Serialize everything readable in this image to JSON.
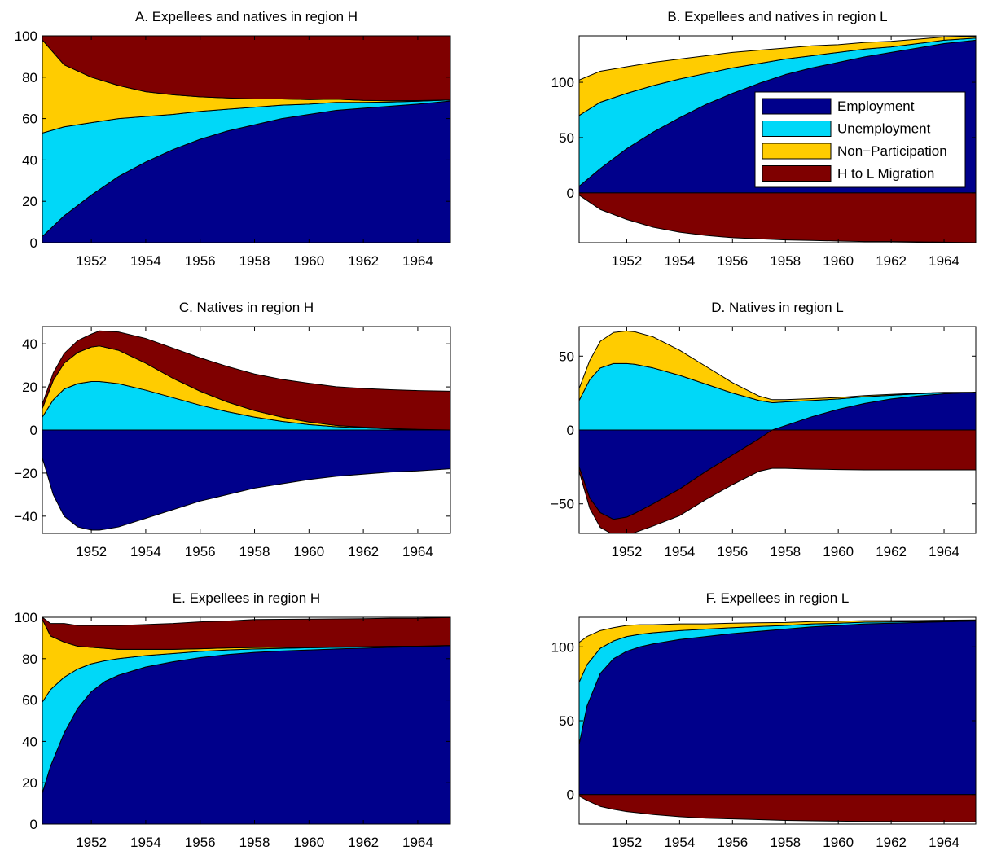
{
  "colors": {
    "employment": "#00008b",
    "unemployment": "#00d8f8",
    "non_participation": "#ffcc00",
    "migration": "#7f0000"
  },
  "legend": {
    "employment": "Employment",
    "unemployment": "Unemployment",
    "non_participation": "Non−Participation",
    "migration": "H to L Migration"
  },
  "chart_data": [
    {
      "id": "A",
      "type": "area",
      "title": "A. Expellees and natives in region H",
      "xlim": [
        1950.2,
        1965.2
      ],
      "ylim": [
        0,
        100
      ],
      "xticks": [
        1952,
        1954,
        1956,
        1958,
        1960,
        1962,
        1964
      ],
      "yticks": [
        0,
        20,
        40,
        60,
        80,
        100
      ],
      "ytick_labels": [
        "0",
        "20",
        "40",
        "60",
        "80",
        "100"
      ],
      "x": [
        1950.2,
        1951,
        1952,
        1953,
        1954,
        1955,
        1956,
        1957,
        1958,
        1959,
        1960,
        1961,
        1962,
        1963,
        1964,
        1965.2
      ],
      "series": [
        {
          "name": "Employment",
          "key": "employment",
          "values": [
            3,
            13,
            23,
            32,
            39,
            45,
            50,
            54,
            57,
            60,
            62,
            64,
            65,
            66,
            67,
            68.5
          ]
        },
        {
          "name": "Unemployment",
          "key": "unemployment",
          "values": [
            50,
            43,
            35,
            28,
            22,
            17,
            13.5,
            10.5,
            8.5,
            6.5,
            5,
            3.8,
            2.8,
            2,
            1.4,
            0.5
          ]
        },
        {
          "name": "Non−Participation",
          "key": "non_participation",
          "values": [
            45,
            30,
            22,
            16,
            12,
            9.5,
            7,
            5.5,
            4,
            3,
            2.2,
            1.6,
            1,
            0.6,
            0.3,
            0
          ]
        },
        {
          "name": "H to L Migration",
          "key": "migration",
          "values": [
            2,
            14,
            20,
            24,
            27,
            28.5,
            29.5,
            30,
            30.5,
            30.5,
            30.8,
            30.6,
            31.2,
            31.4,
            31.3,
            31
          ]
        }
      ]
    },
    {
      "id": "B",
      "type": "area",
      "title": "B. Expellees and natives in region L",
      "xlim": [
        1950.2,
        1965.2
      ],
      "ylim": [
        -45,
        142
      ],
      "xticks": [
        1952,
        1954,
        1956,
        1958,
        1960,
        1962,
        1964
      ],
      "yticks": [
        0,
        50,
        100
      ],
      "ytick_labels": [
        "0",
        "50",
        "100"
      ],
      "x": [
        1950.2,
        1951,
        1952,
        1953,
        1954,
        1955,
        1956,
        1957,
        1958,
        1959,
        1960,
        1961,
        1962,
        1963,
        1964,
        1965.2
      ],
      "series": [
        {
          "name": "Employment",
          "key": "employment",
          "values": [
            6,
            22,
            40,
            55,
            68,
            80,
            90,
            99,
            107,
            113,
            118,
            123,
            127,
            131,
            135,
            138
          ]
        },
        {
          "name": "Unemployment",
          "key": "unemployment",
          "values": [
            64,
            60,
            50,
            42,
            35,
            28,
            23,
            18,
            14,
            11,
            9,
            7,
            5,
            4,
            3,
            2
          ]
        },
        {
          "name": "Non−Participation",
          "key": "non_participation",
          "values": [
            32,
            28,
            24,
            21,
            18,
            16,
            14,
            12,
            10,
            9,
            7,
            6,
            5,
            4,
            3,
            1.5
          ]
        },
        {
          "name": "H to L Migration",
          "key": "migration",
          "values": [
            -2,
            -15,
            -24,
            -31,
            -35.5,
            -38.5,
            -40.5,
            -41.5,
            -42.5,
            -43,
            -43.5,
            -44,
            -44,
            -44.3,
            -44.5,
            -45
          ]
        }
      ]
    },
    {
      "id": "C",
      "type": "area",
      "title": "C. Natives in region H",
      "xlim": [
        1950.2,
        1965.2
      ],
      "ylim": [
        -48,
        48
      ],
      "xticks": [
        1952,
        1954,
        1956,
        1958,
        1960,
        1962,
        1964
      ],
      "yticks": [
        -40,
        -20,
        0,
        20,
        40
      ],
      "ytick_labels": [
        "−40",
        "−20",
        "0",
        "20",
        "40"
      ],
      "x": [
        1950.2,
        1950.6,
        1951,
        1951.5,
        1952,
        1952.3,
        1953,
        1954,
        1955,
        1956,
        1957,
        1958,
        1959,
        1960,
        1961,
        1962,
        1963,
        1964,
        1965.2
      ],
      "series": [
        {
          "name": "Employment",
          "key": "employment",
          "values": [
            -13,
            -30,
            -40,
            -45,
            -46.5,
            -46.5,
            -45,
            -41,
            -37,
            -33,
            -30,
            -27,
            -25,
            -23,
            -21.5,
            -20.5,
            -19.5,
            -19,
            -18
          ]
        },
        {
          "name": "Unemployment",
          "key": "unemployment",
          "values": [
            6,
            14,
            19,
            21.5,
            22.5,
            22.5,
            21.5,
            18.5,
            15,
            11.5,
            8.5,
            6,
            4,
            2.5,
            1.5,
            1,
            0.5,
            0.2,
            0
          ]
        },
        {
          "name": "Non−Participation",
          "key": "non_participation",
          "values": [
            4,
            9,
            12,
            14.5,
            16,
            16.5,
            15.5,
            12.5,
            9,
            6.5,
            4.5,
            3,
            2,
            1.2,
            0.6,
            0.3,
            0.2,
            0.1,
            0
          ]
        },
        {
          "name": "H to L Migration",
          "key": "migration",
          "values": [
            2,
            3.5,
            4.5,
            5.5,
            6,
            7,
            8.5,
            11.5,
            14,
            15.5,
            16.5,
            17,
            17.5,
            18,
            18,
            18,
            18,
            18,
            18
          ]
        }
      ]
    },
    {
      "id": "D",
      "type": "area",
      "title": "D. Natives in region L",
      "xlim": [
        1950.2,
        1965.2
      ],
      "ylim": [
        -70,
        70
      ],
      "xticks": [
        1952,
        1954,
        1956,
        1958,
        1960,
        1962,
        1964
      ],
      "yticks": [
        -50,
        0,
        50
      ],
      "ytick_labels": [
        "−50",
        "0",
        "50"
      ],
      "x": [
        1950.2,
        1950.6,
        1951,
        1951.5,
        1952,
        1952.3,
        1953,
        1954,
        1955,
        1956,
        1957,
        1957.5,
        1958,
        1959,
        1960,
        1961,
        1962,
        1963,
        1964,
        1965.2
      ],
      "series": [
        {
          "name": "Employment",
          "key": "employment",
          "values": [
            -25,
            -46,
            -56,
            -60.5,
            -59,
            -56.5,
            -50,
            -40,
            -28,
            -17,
            -6,
            0,
            3,
            9,
            14,
            18,
            21,
            23,
            24.5,
            25.5
          ]
        },
        {
          "name": "Unemployment",
          "key": "unemployment",
          "values": [
            20,
            34,
            42,
            45,
            45,
            44.5,
            42,
            37,
            31,
            25,
            20,
            18.5,
            16,
            11,
            7,
            4.5,
            2.5,
            1.5,
            0.8,
            0
          ]
        },
        {
          "name": "Non−Participation",
          "key": "non_participation",
          "values": [
            8,
            13,
            18,
            21,
            22,
            22,
            21,
            17,
            12,
            7,
            3,
            2,
            1.5,
            1.2,
            1,
            0.8,
            0.6,
            0.4,
            0.2,
            0
          ]
        },
        {
          "name": "H to L Migration",
          "key": "migration",
          "values": [
            -3,
            -7,
            -10,
            -10.5,
            -12,
            -13,
            -15,
            -18,
            -19,
            -20,
            -22,
            -26,
            -26,
            -26.5,
            -26.8,
            -27,
            -27,
            -27,
            -27,
            -27
          ]
        }
      ]
    },
    {
      "id": "E",
      "type": "area",
      "title": "E. Expellees in region H",
      "xlim": [
        1950.2,
        1965.2
      ],
      "ylim": [
        0,
        100
      ],
      "xticks": [
        1952,
        1954,
        1956,
        1958,
        1960,
        1962,
        1964
      ],
      "yticks": [
        0,
        20,
        40,
        60,
        80,
        100
      ],
      "ytick_labels": [
        "0",
        "20",
        "40",
        "60",
        "80",
        "100"
      ],
      "x": [
        1950.2,
        1950.5,
        1951,
        1951.5,
        1952,
        1952.5,
        1953,
        1954,
        1955,
        1956,
        1957,
        1958,
        1959,
        1960,
        1961,
        1962,
        1963,
        1964,
        1965.2
      ],
      "series": [
        {
          "name": "Employment",
          "key": "employment",
          "values": [
            15,
            28,
            44,
            56,
            64,
            69,
            72,
            76,
            78.5,
            80.5,
            82,
            83,
            83.7,
            84.2,
            84.7,
            85.1,
            85.5,
            85.8,
            86.3
          ]
        },
        {
          "name": "Unemployment",
          "key": "unemployment",
          "values": [
            44,
            37,
            27,
            19,
            13.5,
            10,
            8,
            5.5,
            4,
            3,
            2.2,
            1.7,
            1.3,
            1.1,
            0.8,
            0.6,
            0.4,
            0.2,
            0.1
          ]
        },
        {
          "name": "Non−Participation",
          "key": "non_participation",
          "values": [
            40,
            26,
            17,
            11,
            8,
            6,
            4.5,
            3,
            2,
            1.3,
            1,
            0.7,
            0.5,
            0.3,
            0.2,
            0.1,
            0.1,
            0,
            0
          ]
        },
        {
          "name": "H to L Migration",
          "key": "migration",
          "values": [
            1,
            6,
            9,
            10,
            10.5,
            11,
            11.5,
            12,
            12.5,
            13,
            13,
            13.5,
            13.5,
            13.5,
            13.5,
            13.5,
            13.5,
            13.5,
            13.5
          ]
        }
      ]
    },
    {
      "id": "F",
      "type": "area",
      "title": "F. Expellees in region L",
      "xlim": [
        1950.2,
        1965.2
      ],
      "ylim": [
        -20,
        120
      ],
      "xticks": [
        1952,
        1954,
        1956,
        1958,
        1960,
        1962,
        1964
      ],
      "yticks": [
        0,
        50,
        100
      ],
      "ytick_labels": [
        "0",
        "50",
        "100"
      ],
      "x": [
        1950.2,
        1950.5,
        1951,
        1951.5,
        1952,
        1952.5,
        1953,
        1954,
        1955,
        1956,
        1957,
        1958,
        1959,
        1960,
        1961,
        1962,
        1963,
        1964,
        1965.2
      ],
      "series": [
        {
          "name": "Employment",
          "key": "employment",
          "values": [
            34,
            60,
            82,
            92,
            97,
            100,
            102,
            105,
            107,
            109,
            110.5,
            112,
            113.5,
            114.5,
            115.5,
            116,
            116.5,
            117,
            117.5
          ]
        },
        {
          "name": "Unemployment",
          "key": "unemployment",
          "values": [
            42,
            28,
            17,
            12,
            10,
            8.5,
            7.5,
            6,
            5,
            4,
            3.3,
            2.5,
            2,
            1.5,
            1.2,
            0.9,
            0.6,
            0.4,
            0.2
          ]
        },
        {
          "name": "Non−Participation",
          "key": "non_participation",
          "values": [
            27,
            19,
            12,
            9,
            7.5,
            6.5,
            5.5,
            4.5,
            3.5,
            3,
            2.5,
            2,
            1.6,
            1.3,
            1,
            0.8,
            0.7,
            0.6,
            0.5
          ]
        },
        {
          "name": "H to L Migration",
          "key": "migration",
          "values": [
            -1,
            -4,
            -8,
            -10,
            -11.5,
            -12.5,
            -13.5,
            -15,
            -16,
            -16.5,
            -17,
            -17.5,
            -17.8,
            -18,
            -18.2,
            -18.3,
            -18.4,
            -18.5,
            -18.5
          ]
        }
      ]
    }
  ]
}
